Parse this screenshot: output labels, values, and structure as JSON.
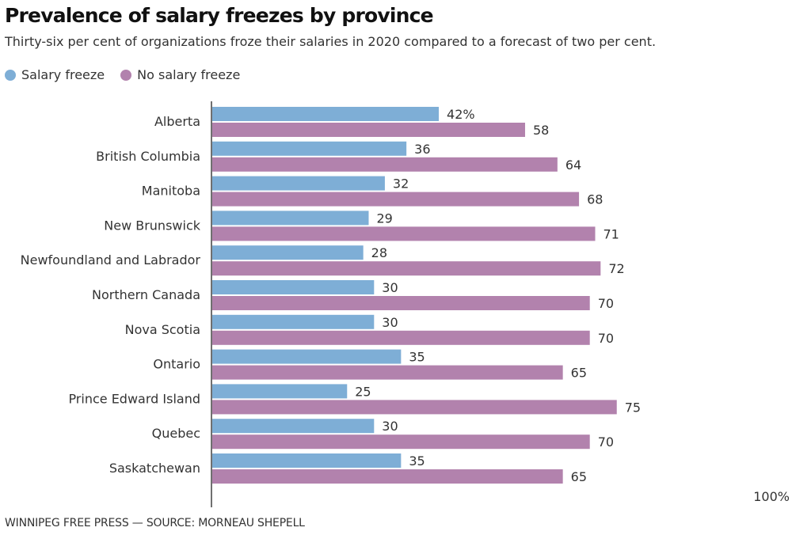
{
  "header": {
    "title": "Prevalence of salary freezes by province",
    "subtitle": "Thirty-six per cent of organizations froze their salaries in 2020 compared to a forecast of two per cent."
  },
  "footer": {
    "credit": "WINNIPEG FREE PRESS — SOURCE: MORNEAU SHEPELL"
  },
  "chart_data": {
    "type": "bar",
    "orientation": "horizontal",
    "title": "Prevalence of salary freezes by province",
    "subtitle": "Thirty-six per cent of organizations froze their salaries in 2020 compared to a forecast of two per cent.",
    "xlabel": "",
    "ylabel": "",
    "xlim": [
      0,
      100
    ],
    "axis_end_label": "100%",
    "first_label_suffix": "%",
    "grid": false,
    "legend_position": "top-left",
    "categories": [
      "Alberta",
      "British Columbia",
      "Manitoba",
      "New Brunswick",
      "Newfoundland and Labrador",
      "Northern Canada",
      "Nova Scotia",
      "Ontario",
      "Prince Edward Island",
      "Quebec",
      "Saskatchewan"
    ],
    "series": [
      {
        "name": "Salary freeze",
        "color": "#7eaed6",
        "values": [
          42,
          36,
          32,
          29,
          28,
          30,
          30,
          35,
          25,
          30,
          35
        ]
      },
      {
        "name": "No salary freeze",
        "color": "#b282ad",
        "values": [
          58,
          64,
          68,
          71,
          72,
          70,
          70,
          65,
          75,
          70,
          65
        ]
      }
    ]
  }
}
